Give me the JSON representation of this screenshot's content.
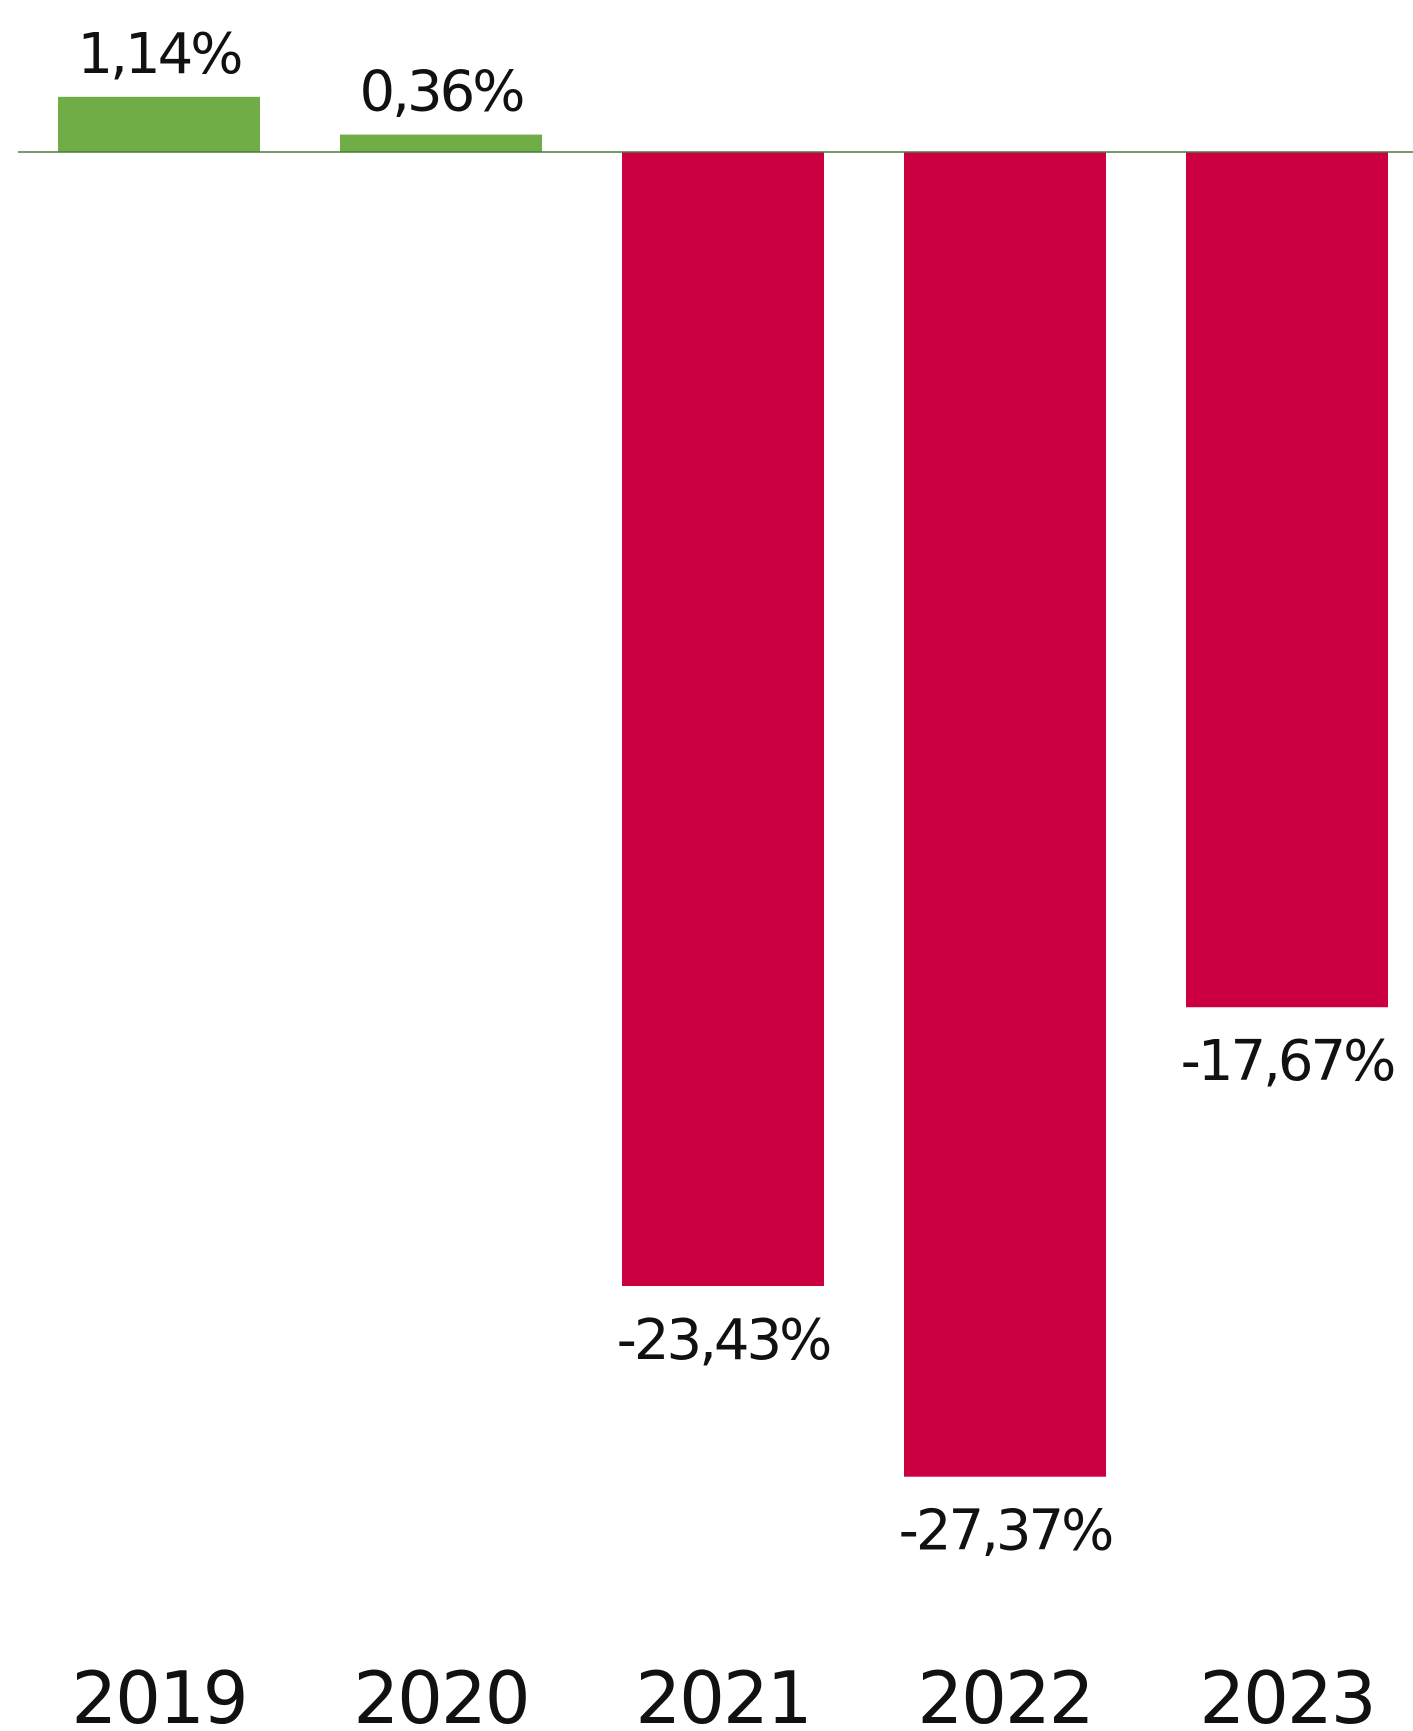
{
  "chart_data": {
    "type": "bar",
    "categories": [
      "2019",
      "2020",
      "2021",
      "2022",
      "2023"
    ],
    "values": [
      1.14,
      0.36,
      -23.43,
      -27.37,
      -17.67
    ],
    "value_labels": [
      "1,14%",
      "0,36%",
      "-23,43%",
      "-27,37%",
      "-17,67%"
    ],
    "title": "",
    "xlabel": "",
    "ylabel": "",
    "ylim": [
      -27.37,
      1.14
    ],
    "grid": false,
    "legend": "none",
    "colors": {
      "positive": "#70AD47",
      "negative": "#CC0040",
      "baseline": "#4a7a3a"
    }
  }
}
